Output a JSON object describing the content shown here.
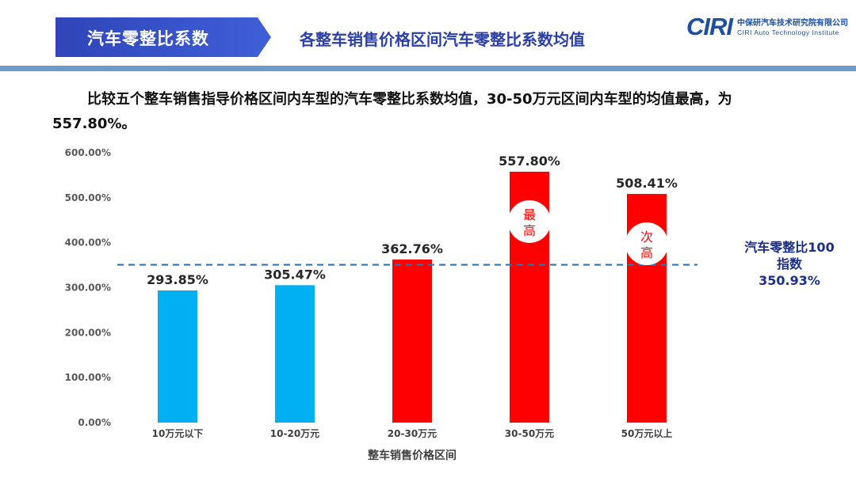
{
  "header": {
    "section_label": "汽车零整比系数",
    "title": "各整车销售价格区间汽车零整比系数均值",
    "logo_mark": "CIRI",
    "logo_cn": "中保研汽车技术研究院有限公司",
    "logo_en": "CIRI Auto Technology Institute"
  },
  "summary": "比较五个整车销售指导价格区间内车型的汽车零整比系数均值，30-50万元区间内车型的均值最高，为557.80%。",
  "colors": {
    "accent": "#2f45b8",
    "bar_low": "#00b0f0",
    "bar_high": "#ff0000",
    "reference_line": "#2e75b6"
  },
  "chart_data": {
    "type": "bar",
    "categories": [
      "10万元以下",
      "10-20万元",
      "20-30万元",
      "30-50万元",
      "50万元以上"
    ],
    "values": [
      293.85,
      305.47,
      362.76,
      557.8,
      508.41
    ],
    "value_labels": [
      "293.85%",
      "305.47%",
      "362.76%",
      "557.80%",
      "508.41%"
    ],
    "bar_colors": [
      "#00b0f0",
      "#00b0f0",
      "#ff0000",
      "#ff0000",
      "#ff0000"
    ],
    "xlabel": "整车销售价格区间",
    "ylabel": "",
    "ylim": [
      0,
      600
    ],
    "yticks": [
      0,
      100,
      200,
      300,
      400,
      500,
      600
    ],
    "ytick_labels": [
      "0.00%",
      "100.00%",
      "200.00%",
      "300.00%",
      "400.00%",
      "500.00%",
      "600.00%"
    ],
    "grid": false,
    "reference_line": {
      "value": 350.93,
      "style": "dashed"
    },
    "annotations": [
      {
        "category": "30-50万元",
        "text": [
          "最",
          "高"
        ]
      },
      {
        "category": "50万元以上",
        "text": [
          "次",
          "高"
        ]
      }
    ]
  },
  "reference_callout": {
    "line1": "汽车零整比100",
    "line2": "指数",
    "line3": "350.93%"
  }
}
